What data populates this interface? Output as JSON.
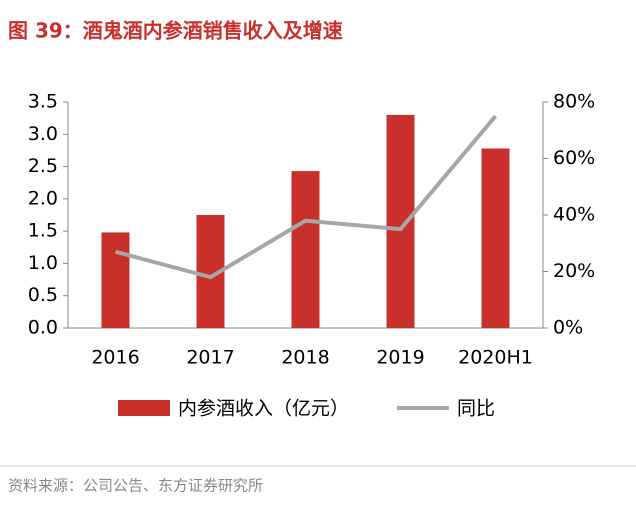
{
  "chart_data": {
    "type": "bar_line",
    "title": "图 39：酒鬼酒内参酒销售收入及增速",
    "source": "资料来源：公司公告、东方证券研究所",
    "categories": [
      "2016",
      "2017",
      "2018",
      "2019",
      "2020H1"
    ],
    "series": [
      {
        "name": "内参酒收入（亿元）",
        "type": "bar",
        "color": "#c9302c",
        "values": [
          1.48,
          1.75,
          2.43,
          3.3,
          2.78
        ]
      },
      {
        "name": "同比",
        "type": "line",
        "axis": "y2",
        "color": "#a6a6a6",
        "values": [
          27,
          18,
          38,
          35,
          75
        ]
      }
    ],
    "ylim": [
      0,
      3.5
    ],
    "yticks": [
      {
        "value": 0,
        "label": "0.0"
      },
      0.5,
      {
        "value": 1,
        "label": "1.0"
      },
      1.5,
      {
        "value": 2,
        "label": "2.0"
      },
      2.5,
      {
        "value": 3,
        "label": "3.0"
      },
      3.5
    ],
    "y2lim": [
      0,
      80
    ],
    "y2ticks": [
      {
        "value": 0,
        "label": "0%"
      },
      {
        "value": 20,
        "label": "20%"
      },
      {
        "value": 40,
        "label": "40%"
      },
      {
        "value": 60,
        "label": "60%"
      },
      {
        "value": 80,
        "label": "80%"
      }
    ],
    "grid": false,
    "legend": "bottom"
  }
}
